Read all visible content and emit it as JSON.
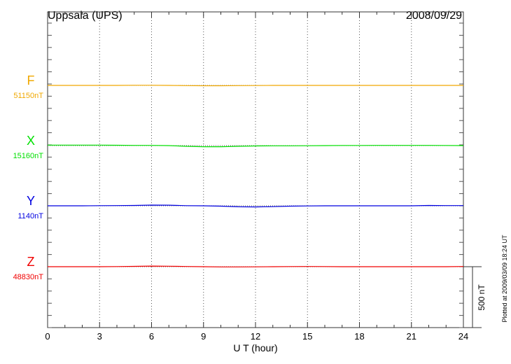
{
  "chart_data": {
    "type": "line",
    "title": "Uppsala (UPS)",
    "date": "2008/09/29",
    "xlabel": "U T (hour)",
    "xlim": [
      0,
      24
    ],
    "xticks": [
      0,
      3,
      6,
      9,
      12,
      15,
      18,
      21,
      24
    ],
    "grid": "vertical dotted every 3 hours",
    "x": [
      0,
      1,
      2,
      3,
      4,
      5,
      6,
      7,
      8,
      9,
      10,
      11,
      12,
      13,
      14,
      15,
      16,
      17,
      18,
      19,
      20,
      21,
      22,
      23,
      24
    ],
    "value_unit": "nT deviation from printed baseline",
    "series": [
      {
        "name": "F",
        "baseline_label": "51150nT",
        "color": "#f0a800",
        "values": [
          0,
          0,
          0,
          0,
          0,
          1,
          1,
          0,
          -2,
          -3,
          -3,
          -2,
          -1,
          0,
          0,
          0,
          0,
          0,
          0,
          0,
          0,
          0,
          0,
          0,
          0
        ]
      },
      {
        "name": "X",
        "baseline_label": "15160nT",
        "color": "#00e000",
        "values": [
          4,
          4,
          4,
          4,
          3,
          2,
          2,
          0,
          -6,
          -9,
          -9,
          -6,
          -3,
          -2,
          -2,
          -1,
          0,
          1,
          1,
          2,
          2,
          2,
          2,
          1,
          0
        ]
      },
      {
        "name": "Y",
        "baseline_label": "1140nT",
        "color": "#0000e0",
        "values": [
          0,
          0,
          0,
          1,
          2,
          3,
          6,
          5,
          1,
          0,
          -3,
          -8,
          -9,
          -7,
          -3,
          -1,
          0,
          0,
          0,
          0,
          0,
          0,
          3,
          2,
          2
        ]
      },
      {
        "name": "Z",
        "baseline_label": "48830nT",
        "color": "#f00000",
        "values": [
          0,
          0,
          0,
          0,
          1,
          3,
          5,
          4,
          2,
          0,
          -2,
          -2,
          -1,
          0,
          1,
          2,
          1,
          0,
          0,
          0,
          0,
          0,
          0,
          0,
          2
        ]
      }
    ],
    "scale_bar": "500 nT",
    "scale_bar_nT": 500
  },
  "footer": {
    "plotted": "Plotted at 2009/03/09 18:24 UT"
  }
}
